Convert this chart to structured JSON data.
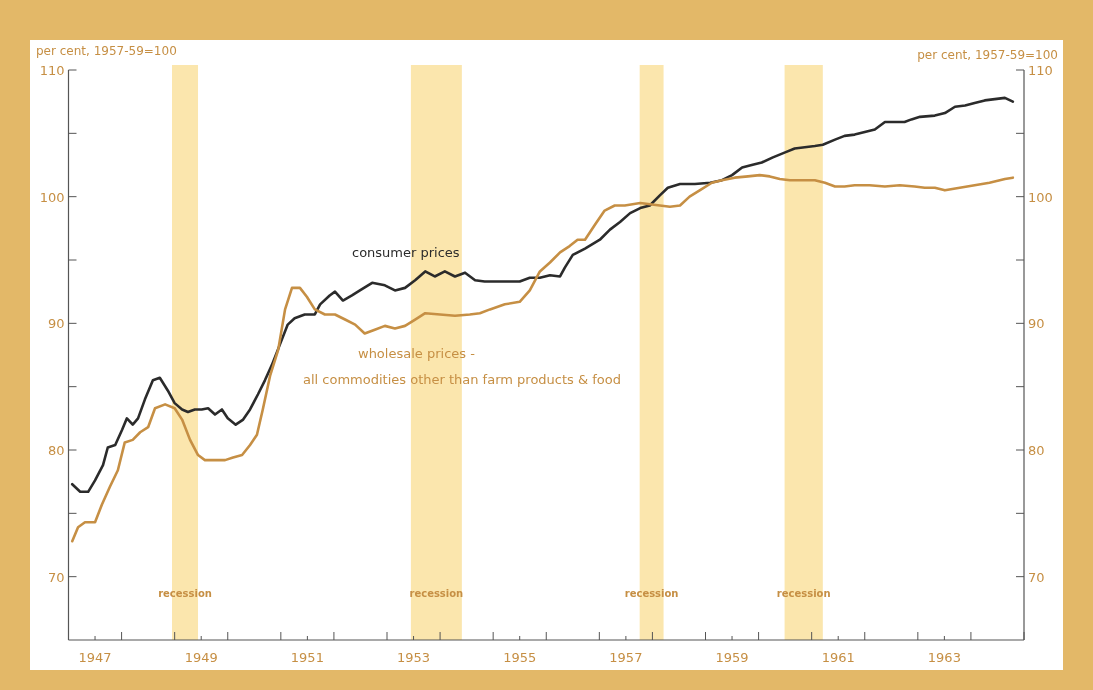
{
  "chart_data": {
    "type": "line",
    "ylabel": "per cent, 1957-59=100",
    "y2label": "per cent, 1957-59=100",
    "xlim": [
      1947,
      1965
    ],
    "xticks": [
      {
        "value": 1947,
        "label": null
      },
      {
        "value": 1947.5,
        "label": "1947"
      },
      {
        "value": 1948,
        "label": null
      },
      {
        "value": 1949,
        "label": null
      },
      {
        "value": 1949.5,
        "label": "1949"
      },
      {
        "value": 1950,
        "label": null
      },
      {
        "value": 1951,
        "label": null
      },
      {
        "value": 1951.5,
        "label": "1951"
      },
      {
        "value": 1952,
        "label": null
      },
      {
        "value": 1953,
        "label": null
      },
      {
        "value": 1953.5,
        "label": "1953"
      },
      {
        "value": 1954,
        "label": null
      },
      {
        "value": 1955,
        "label": null
      },
      {
        "value": 1955.5,
        "label": "1955"
      },
      {
        "value": 1956,
        "label": null
      },
      {
        "value": 1957,
        "label": null
      },
      {
        "value": 1957.5,
        "label": "1957"
      },
      {
        "value": 1958,
        "label": null
      },
      {
        "value": 1959,
        "label": null
      },
      {
        "value": 1959.5,
        "label": "1959"
      },
      {
        "value": 1960,
        "label": null
      },
      {
        "value": 1961,
        "label": null
      },
      {
        "value": 1961.5,
        "label": "1961"
      },
      {
        "value": 1962,
        "label": null
      },
      {
        "value": 1963,
        "label": null
      },
      {
        "value": 1963.5,
        "label": "1963"
      },
      {
        "value": 1964,
        "label": null
      },
      {
        "value": 1965,
        "label": null
      }
    ],
    "ylim": [
      65,
      110
    ],
    "yticks": [
      70,
      {
        "value": 75,
        "label": null
      },
      80,
      {
        "value": 85,
        "label": null
      },
      90,
      {
        "value": 95,
        "label": null
      },
      100,
      {
        "value": 105,
        "label": null
      },
      110
    ],
    "y2lim": [
      65,
      110
    ],
    "y2ticks": [
      70,
      {
        "value": 75,
        "label": null
      },
      80,
      {
        "value": 85,
        "label": null
      },
      90,
      {
        "value": 95,
        "label": null
      },
      100,
      {
        "value": 105,
        "label": null
      },
      110
    ],
    "grid": false,
    "legend": false,
    "line_style": "solid",
    "marker": "none",
    "bands": [
      {
        "axis": "x",
        "from": 1948.95,
        "to": 1949.44,
        "label": "recession",
        "color": "#fbe6ad"
      },
      {
        "axis": "x",
        "from": 1953.45,
        "to": 1954.41,
        "label": "recession",
        "color": "#fbe6ad"
      },
      {
        "axis": "x",
        "from": 1957.76,
        "to": 1958.21,
        "label": "recession",
        "color": "#fbe6ad"
      },
      {
        "axis": "x",
        "from": 1960.49,
        "to": 1961.21,
        "label": "recession",
        "color": "#fbe6ad"
      }
    ],
    "series": [
      {
        "name": "consumer prices",
        "color": "#2b2b2b",
        "x": [
          1947.07,
          1947.22,
          1947.37,
          1947.5,
          1947.65,
          1947.74,
          1947.88,
          1948.01,
          1948.1,
          1948.21,
          1948.31,
          1948.44,
          1948.59,
          1948.72,
          1948.87,
          1949,
          1949.14,
          1949.25,
          1949.38,
          1949.51,
          1949.63,
          1949.76,
          1949.89,
          1950,
          1950.15,
          1950.29,
          1950.42,
          1950.57,
          1950.7,
          1950.83,
          1950.98,
          1951.13,
          1951.26,
          1951.45,
          1951.64,
          1951.74,
          1951.92,
          1952.02,
          1952.17,
          1952.34,
          1952.49,
          1952.72,
          1952.96,
          1953.15,
          1953.34,
          1953.53,
          1953.72,
          1953.9,
          1954.09,
          1954.28,
          1954.47,
          1954.66,
          1954.84,
          1955.03,
          1955.28,
          1955.5,
          1955.69,
          1955.88,
          1956.07,
          1956.26,
          1956.35,
          1956.5,
          1956.73,
          1957.01,
          1957.2,
          1957.39,
          1957.58,
          1957.77,
          1957.95,
          1958.14,
          1958.29,
          1958.52,
          1958.8,
          1959.09,
          1959.31,
          1959.5,
          1959.69,
          1959.87,
          1960.06,
          1960.27,
          1960.5,
          1960.68,
          1960.87,
          1961.06,
          1961.21,
          1961.44,
          1961.62,
          1961.81,
          1962,
          1962.19,
          1962.38,
          1962.56,
          1962.75,
          1962.88,
          1963.04,
          1963.32,
          1963.51,
          1963.7,
          1963.89,
          1964.07,
          1964.26,
          1964.64,
          1964.79
        ],
        "values": [
          77.3,
          76.7,
          76.7,
          77.6,
          78.8,
          80.2,
          80.4,
          81.6,
          82.5,
          82,
          82.5,
          84,
          85.5,
          85.7,
          84.7,
          83.7,
          83.2,
          83,
          83.2,
          83.2,
          83.3,
          82.8,
          83.2,
          82.5,
          82,
          82.4,
          83.2,
          84.4,
          85.5,
          86.7,
          88.3,
          89.9,
          90.4,
          90.7,
          90.7,
          91.5,
          92.2,
          92.5,
          91.8,
          92.2,
          92.6,
          93.2,
          93,
          92.6,
          92.8,
          93.4,
          94.1,
          93.7,
          94.1,
          93.7,
          94,
          93.4,
          93.3,
          93.3,
          93.3,
          93.3,
          93.6,
          93.6,
          93.8,
          93.7,
          94.4,
          95.4,
          95.9,
          96.6,
          97.4,
          98,
          98.7,
          99.1,
          99.3,
          100.1,
          100.7,
          101,
          101,
          101.1,
          101.3,
          101.7,
          102.3,
          102.5,
          102.7,
          103.1,
          103.5,
          103.8,
          103.9,
          104,
          104.1,
          104.5,
          104.8,
          104.9,
          105.1,
          105.3,
          105.9,
          105.9,
          105.9,
          106.1,
          106.3,
          106.4,
          106.6,
          107.1,
          107.2,
          107.4,
          107.6,
          107.8,
          107.5
        ]
      },
      {
        "name": "wholesale prices -\nall commodities other than farm products & food",
        "color": "#c68f44",
        "x": [
          1947.07,
          1947.18,
          1947.31,
          1947.5,
          1947.63,
          1947.78,
          1947.93,
          1948.06,
          1948.21,
          1948.35,
          1948.5,
          1948.63,
          1948.82,
          1949,
          1949.14,
          1949.29,
          1949.44,
          1949.57,
          1949.76,
          1949.95,
          1950.1,
          1950.27,
          1950.42,
          1950.55,
          1950.66,
          1950.8,
          1950.95,
          1951.08,
          1951.21,
          1951.36,
          1951.49,
          1951.64,
          1951.83,
          1952.02,
          1952.21,
          1952.4,
          1952.58,
          1952.77,
          1952.96,
          1953.15,
          1953.34,
          1953.53,
          1953.72,
          1954,
          1954.28,
          1954.56,
          1954.75,
          1954.94,
          1955.22,
          1955.5,
          1955.69,
          1955.88,
          1956.07,
          1956.26,
          1956.44,
          1956.59,
          1956.73,
          1956.92,
          1957.1,
          1957.29,
          1957.48,
          1957.77,
          1958.14,
          1958.33,
          1958.52,
          1958.7,
          1958.89,
          1959.12,
          1959.31,
          1959.55,
          1959.8,
          1960.02,
          1960.21,
          1960.4,
          1960.59,
          1960.77,
          1961.06,
          1961.25,
          1961.44,
          1961.62,
          1961.81,
          1962.09,
          1962.38,
          1962.66,
          1962.94,
          1963.13,
          1963.32,
          1963.51,
          1963.79,
          1964.07,
          1964.35,
          1964.64,
          1964.79
        ],
        "values": [
          72.8,
          73.9,
          74.3,
          74.3,
          75.7,
          77.1,
          78.4,
          80.6,
          80.8,
          81.4,
          81.8,
          83.3,
          83.6,
          83.3,
          82.4,
          80.8,
          79.6,
          79.2,
          79.2,
          79.2,
          79.4,
          79.6,
          80.4,
          81.2,
          83.2,
          85.9,
          87.9,
          91.1,
          92.8,
          92.8,
          92.1,
          91.1,
          90.7,
          90.7,
          90.3,
          89.9,
          89.2,
          89.5,
          89.8,
          89.6,
          89.8,
          90.3,
          90.8,
          90.7,
          90.6,
          90.7,
          90.8,
          91.1,
          91.5,
          91.7,
          92.6,
          94.1,
          94.8,
          95.6,
          96.1,
          96.6,
          96.6,
          97.8,
          98.9,
          99.3,
          99.3,
          99.5,
          99.3,
          99.2,
          99.3,
          100,
          100.5,
          101.1,
          101.3,
          101.5,
          101.6,
          101.7,
          101.6,
          101.4,
          101.3,
          101.3,
          101.3,
          101.1,
          100.8,
          100.8,
          100.9,
          100.9,
          100.8,
          100.9,
          100.8,
          100.7,
          100.7,
          100.5,
          100.7,
          100.9,
          101.1,
          101.4,
          101.5
        ]
      }
    ]
  }
}
